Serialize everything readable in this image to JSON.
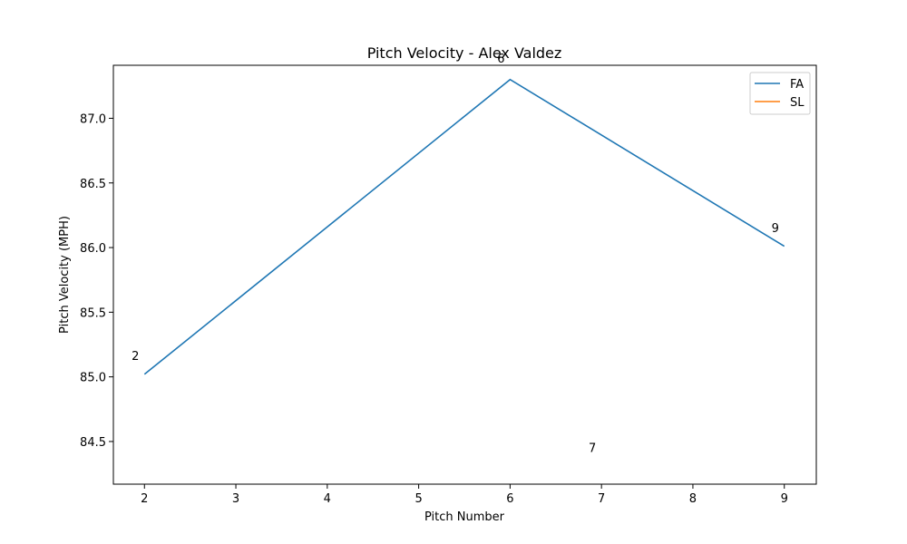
{
  "chart_data": {
    "type": "line",
    "title": "Pitch Velocity - Alex Valdez",
    "xlabel": "Pitch Number",
    "ylabel": "Pitch Velocity (MPH)",
    "xlim": [
      1.66,
      9.35
    ],
    "ylim": [
      84.17,
      87.41
    ],
    "xticks": [
      2,
      3,
      4,
      5,
      6,
      7,
      8,
      9
    ],
    "yticks": [
      84.5,
      85.0,
      85.5,
      86.0,
      86.5,
      87.0
    ],
    "ytick_labels": [
      "84.5",
      "85.0",
      "85.5",
      "86.0",
      "86.5",
      "87.0"
    ],
    "grid": false,
    "legend_position": "top-right",
    "series": [
      {
        "name": "FA",
        "color": "#1f77b4",
        "x": [
          2,
          6,
          9
        ],
        "y": [
          85.02,
          87.3,
          86.01
        ]
      },
      {
        "name": "SL",
        "color": "#ff7f0e",
        "x": [],
        "y": []
      }
    ],
    "annotations": [
      {
        "text": "2",
        "x": 1.86,
        "y": 85.13
      },
      {
        "text": "6",
        "x": 5.86,
        "y": 87.43
      },
      {
        "text": "7",
        "x": 6.86,
        "y": 84.42
      },
      {
        "text": "9",
        "x": 8.86,
        "y": 86.12
      }
    ]
  }
}
